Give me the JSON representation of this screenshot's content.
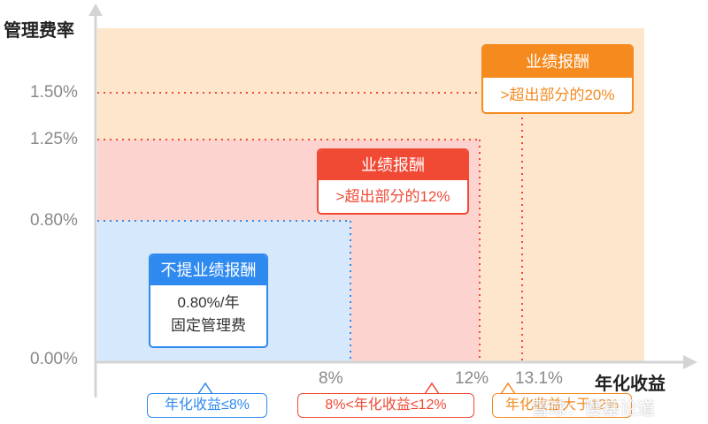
{
  "axes": {
    "y_title": "管理费率",
    "x_title": "年化收益",
    "y_ticks": [
      "1.50%",
      "1.25%",
      "0.80%",
      "0.00%"
    ],
    "x_ticks": [
      "8%",
      "12%",
      "13.1%"
    ]
  },
  "cards": {
    "blue": {
      "title": "不提业绩报酬",
      "line1": "0.80%/年",
      "line2": "固定管理费"
    },
    "red": {
      "title": "业绩报酬",
      "line1": ">超出部分的12%"
    },
    "orange": {
      "title": "业绩报酬",
      "line1": ">超出部分的20%"
    }
  },
  "ranges": {
    "blue": "年化收益≤8%",
    "red": "8%<年化收益≤12%",
    "orange": "年化收益大于12%"
  },
  "watermark": "雪球：慢基论道",
  "colors": {
    "blue_zone": "#d6e8fb",
    "red_zone": "#fcd3cf",
    "orange_zone": "#fde6cc",
    "blue_accent": "#2f8af0",
    "red_accent": "#f04a35",
    "orange_accent": "#f58a1f",
    "axis": "#d4d4d4"
  }
}
